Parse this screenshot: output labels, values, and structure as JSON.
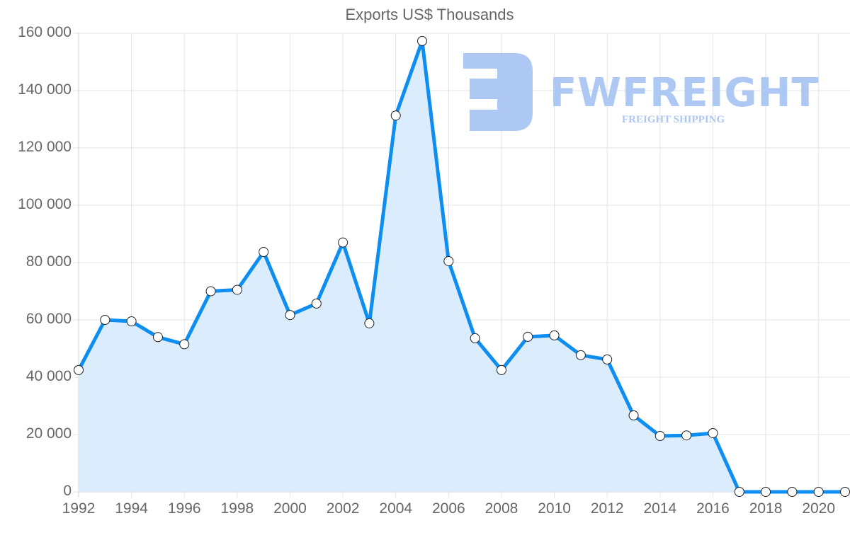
{
  "chart_data": {
    "type": "line",
    "title": "Exports US$ Thousands",
    "xlabel": "",
    "ylabel": "",
    "ylim": [
      0,
      160000
    ],
    "xlim": [
      1992,
      2021
    ],
    "grid": true,
    "fill": true,
    "legend": null,
    "y_ticks": [
      "0",
      "20 000",
      "40 000",
      "60 000",
      "80 000",
      "100 000",
      "120 000",
      "140 000",
      "160 000"
    ],
    "x_ticks": [
      "1992",
      "1994",
      "1996",
      "1998",
      "2000",
      "2002",
      "2004",
      "2006",
      "2008",
      "2010",
      "2012",
      "2014",
      "2016",
      "2018",
      "2020"
    ],
    "categories": [
      1992,
      1993,
      1994,
      1995,
      1996,
      1997,
      1998,
      1999,
      2000,
      2001,
      2002,
      2003,
      2004,
      2005,
      2006,
      2007,
      2008,
      2009,
      2010,
      2011,
      2012,
      2013,
      2014,
      2015,
      2016,
      2017,
      2018,
      2019,
      2020,
      2021
    ],
    "series": [
      {
        "name": "Exports US$ Thousands",
        "color": "#0d8ef0",
        "fill_color": "#d9ecfc",
        "values": [
          42500,
          60000,
          59500,
          54000,
          51500,
          70000,
          70500,
          83700,
          61700,
          65700,
          87000,
          58800,
          131300,
          157300,
          80500,
          53600,
          42500,
          54100,
          54600,
          47700,
          46200,
          26700,
          19500,
          19700,
          20500,
          0,
          0,
          0,
          0,
          0
        ]
      }
    ]
  },
  "watermark": {
    "brand": "FWFREIGHT",
    "tagline": "FREIGHT SHIPPING",
    "color": "#adc8f2"
  }
}
